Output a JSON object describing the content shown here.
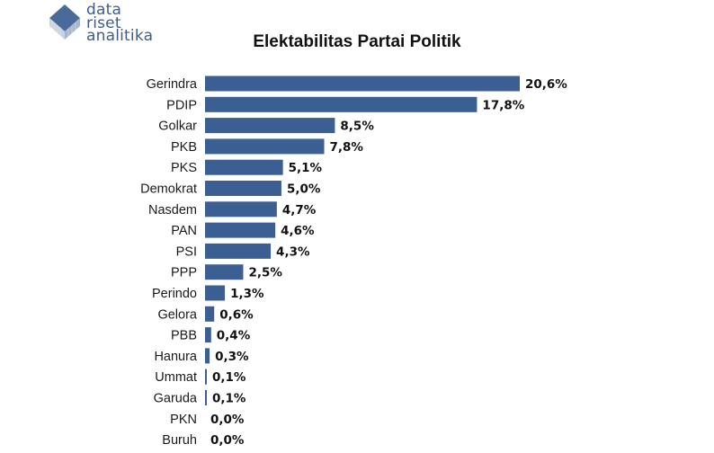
{
  "logo": {
    "line1": "data",
    "line2": "riset",
    "line3": "analitika"
  },
  "colors": {
    "bar": "#3b5f92",
    "logo": "#4a6a9a"
  },
  "chart_data": {
    "type": "bar",
    "orientation": "horizontal",
    "title": "Elektabilitas Partai Politik",
    "categories": [
      "Gerindra",
      "PDIP",
      "Golkar",
      "PKB",
      "PKS",
      "Demokrat",
      "Nasdem",
      "PAN",
      "PSI",
      "PPP",
      "Perindo",
      "Gelora",
      "PBB",
      "Hanura",
      "Ummat",
      "Garuda",
      "PKN",
      "Buruh"
    ],
    "values": [
      20.6,
      17.8,
      8.5,
      7.8,
      5.1,
      5.0,
      4.7,
      4.6,
      4.3,
      2.5,
      1.3,
      0.6,
      0.4,
      0.3,
      0.1,
      0.1,
      0.0,
      0.0
    ],
    "labels": [
      "20,6%",
      "17,8%",
      "8,5%",
      "7,8%",
      "5,1%",
      "5,0%",
      "4,7%",
      "4,6%",
      "4,3%",
      "2,5%",
      "1,3%",
      "0,6%",
      "0,4%",
      "0,3%",
      "0,1%",
      "0,1%",
      "0,0%",
      "0,0%"
    ],
    "xlim": [
      0,
      20.6
    ],
    "grid": false,
    "legend": "none"
  }
}
